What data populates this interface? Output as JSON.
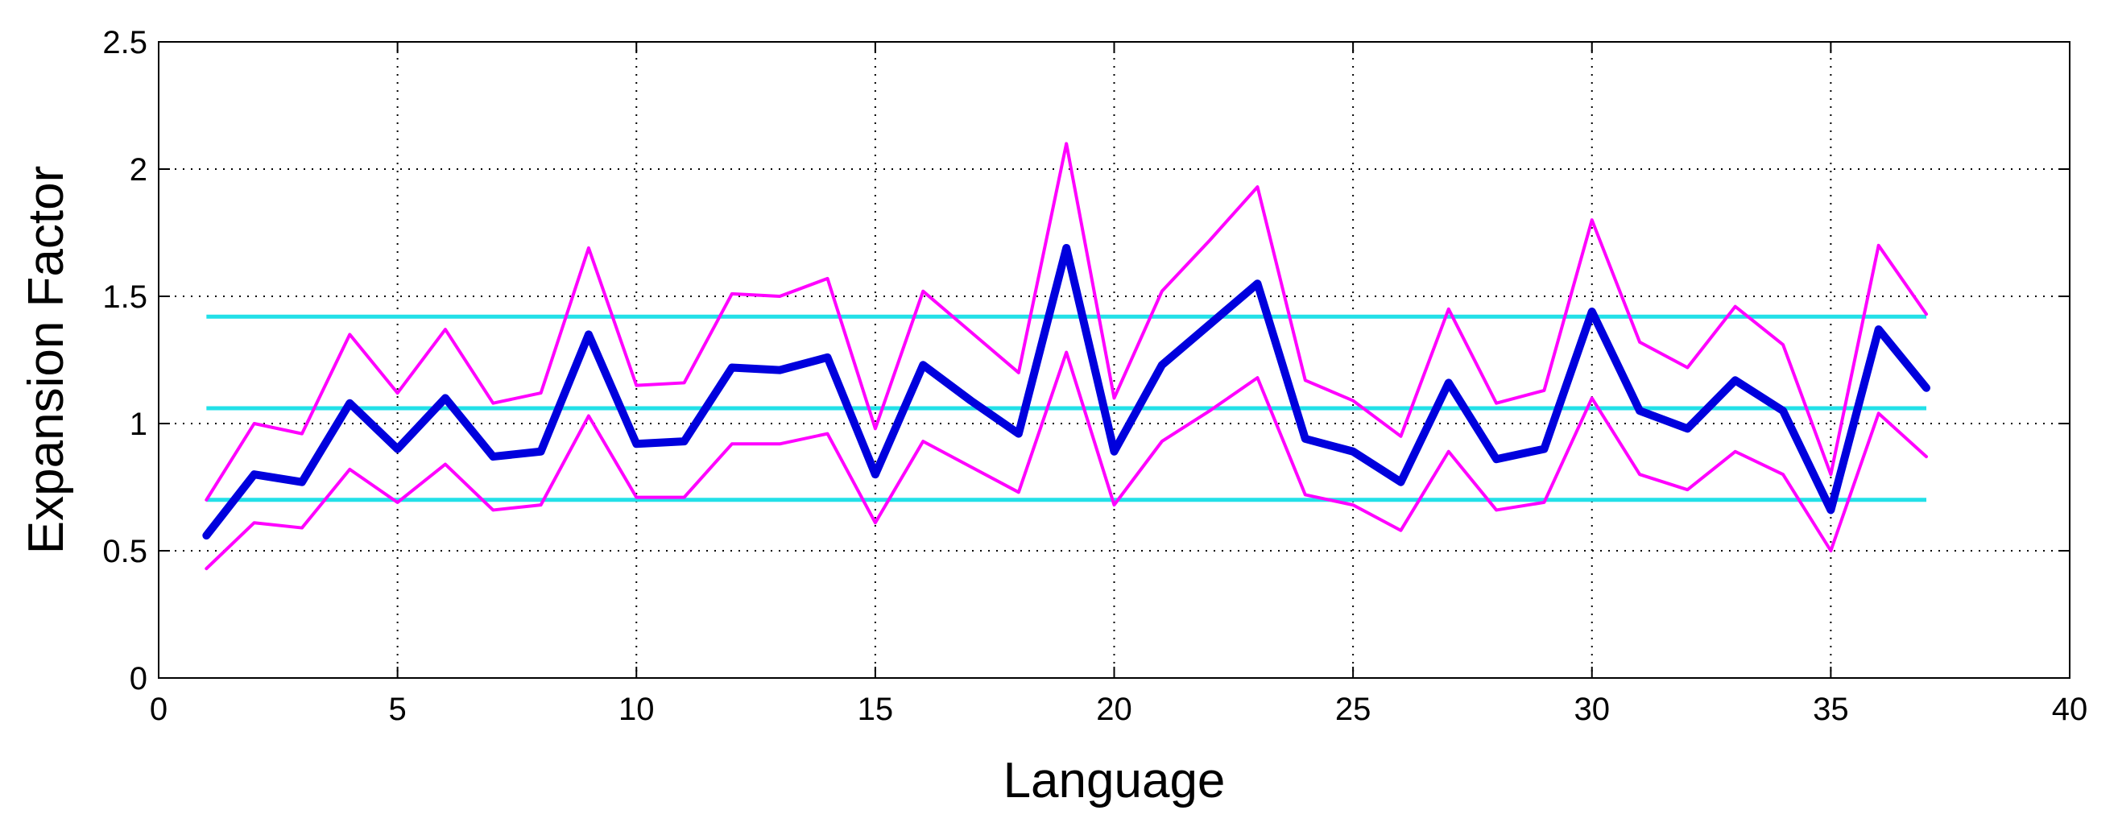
{
  "chart_data": {
    "type": "line",
    "xlabel": "Language",
    "ylabel": "Expansion Factor",
    "xlim": [
      0,
      40
    ],
    "ylim": [
      0,
      2.5
    ],
    "xticks": [
      0,
      5,
      10,
      15,
      20,
      25,
      30,
      35,
      40
    ],
    "yticks": [
      0,
      0.5,
      1,
      1.5,
      2,
      2.5
    ],
    "xtick_labels": [
      "0",
      "5",
      "10",
      "15",
      "20",
      "25",
      "30",
      "35",
      "40"
    ],
    "ytick_labels": [
      "0",
      "0.5",
      "1",
      "1.5",
      "2",
      "2.5"
    ],
    "grid": true,
    "x": [
      1,
      2,
      3,
      4,
      5,
      6,
      7,
      8,
      9,
      10,
      11,
      12,
      13,
      14,
      15,
      16,
      17,
      18,
      19,
      20,
      21,
      22,
      23,
      24,
      25,
      26,
      27,
      28,
      29,
      30,
      31,
      32,
      33,
      34,
      35,
      36,
      37
    ],
    "series": [
      {
        "color": "#ff00ff",
        "width": 4,
        "values": [
          0.7,
          1.0,
          0.96,
          1.35,
          1.12,
          1.37,
          1.08,
          1.12,
          1.69,
          1.15,
          1.16,
          1.51,
          1.5,
          1.57,
          0.98,
          1.52,
          1.36,
          1.2,
          2.1,
          1.1,
          1.52,
          1.72,
          1.93,
          1.17,
          1.09,
          0.95,
          1.45,
          1.08,
          1.13,
          1.8,
          1.32,
          1.22,
          1.46,
          1.31,
          0.8,
          1.7,
          1.43
        ]
      },
      {
        "color": "#0000dd",
        "width": 10,
        "values": [
          0.56,
          0.8,
          0.77,
          1.08,
          0.9,
          1.1,
          0.87,
          0.89,
          1.35,
          0.92,
          0.93,
          1.22,
          1.21,
          1.26,
          0.8,
          1.23,
          1.09,
          0.96,
          1.69,
          0.89,
          1.23,
          1.39,
          1.55,
          0.94,
          0.89,
          0.77,
          1.16,
          0.86,
          0.9,
          1.44,
          1.05,
          0.98,
          1.17,
          1.05,
          0.66,
          1.37,
          1.14
        ]
      },
      {
        "color": "#ff00ff",
        "width": 4,
        "values": [
          0.43,
          0.61,
          0.59,
          0.82,
          0.69,
          0.84,
          0.66,
          0.68,
          1.03,
          0.71,
          0.71,
          0.92,
          0.92,
          0.96,
          0.61,
          0.93,
          0.83,
          0.73,
          1.28,
          0.68,
          0.93,
          1.05,
          1.18,
          0.72,
          0.68,
          0.58,
          0.89,
          0.66,
          0.69,
          1.1,
          0.8,
          0.74,
          0.89,
          0.8,
          0.5,
          1.04,
          0.87
        ]
      }
    ],
    "hlines": [
      {
        "y": 1.42,
        "color": "#22e0e8"
      },
      {
        "y": 1.06,
        "color": "#22e0e8"
      },
      {
        "y": 0.7,
        "color": "#22e0e8"
      }
    ]
  }
}
